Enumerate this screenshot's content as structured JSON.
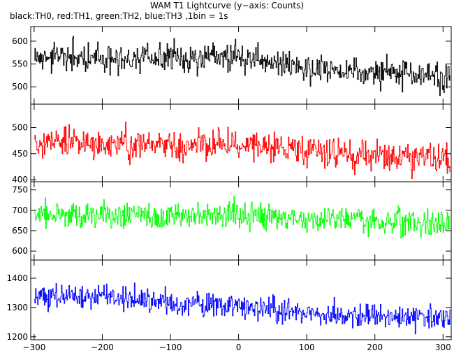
{
  "title": "WAM T1 Lightcurve (y−axis: Counts)",
  "subtitle": "black:TH0, red:TH1, green:TH2, blue:TH3 ,1bin = 1s",
  "chart_data": [
    {
      "type": "line",
      "series": [
        {
          "name": "TH0",
          "color": "#000000",
          "trend": [
            [
              -300,
              565
            ],
            [
              -100,
              562
            ],
            [
              0,
              570
            ],
            [
              100,
              540
            ],
            [
              310,
              520
            ]
          ],
          "noise": 26
        }
      ],
      "xlim": [
        -305,
        312
      ],
      "ylim": [
        462,
        632
      ],
      "yticks": [
        500,
        550,
        600
      ],
      "grid": false
    },
    {
      "type": "line",
      "series": [
        {
          "name": "TH1",
          "color": "#ff0000",
          "trend": [
            [
              -300,
              472
            ],
            [
              -100,
              465
            ],
            [
              0,
              470
            ],
            [
              100,
              455
            ],
            [
              310,
              440
            ]
          ],
          "noise": 24
        }
      ],
      "xlim": [
        -305,
        312
      ],
      "ylim": [
        396,
        545
      ],
      "yticks": [
        400,
        450,
        500
      ],
      "grid": false
    },
    {
      "type": "line",
      "series": [
        {
          "name": "TH2",
          "color": "#00ff00",
          "trend": [
            [
              -300,
              690
            ],
            [
              -100,
              685
            ],
            [
              0,
              690
            ],
            [
              100,
              678
            ],
            [
              310,
              668
            ]
          ],
          "noise": 26
        }
      ],
      "xlim": [
        -305,
        312
      ],
      "ylim": [
        578,
        770
      ],
      "yticks": [
        600,
        650,
        700,
        750
      ],
      "grid": false
    },
    {
      "type": "line",
      "series": [
        {
          "name": "TH3",
          "color": "#0000ff",
          "trend": [
            [
              -300,
              1345
            ],
            [
              -150,
              1330
            ],
            [
              -80,
              1310
            ],
            [
              0,
              1300
            ],
            [
              100,
              1280
            ],
            [
              310,
              1262
            ]
          ],
          "noise": 34
        }
      ],
      "xlim": [
        -305,
        312
      ],
      "ylim": [
        1190,
        1462
      ],
      "yticks": [
        1200,
        1300,
        1400
      ],
      "xticks": [
        -300,
        -200,
        -100,
        0,
        100,
        200,
        300
      ],
      "grid": false
    }
  ]
}
